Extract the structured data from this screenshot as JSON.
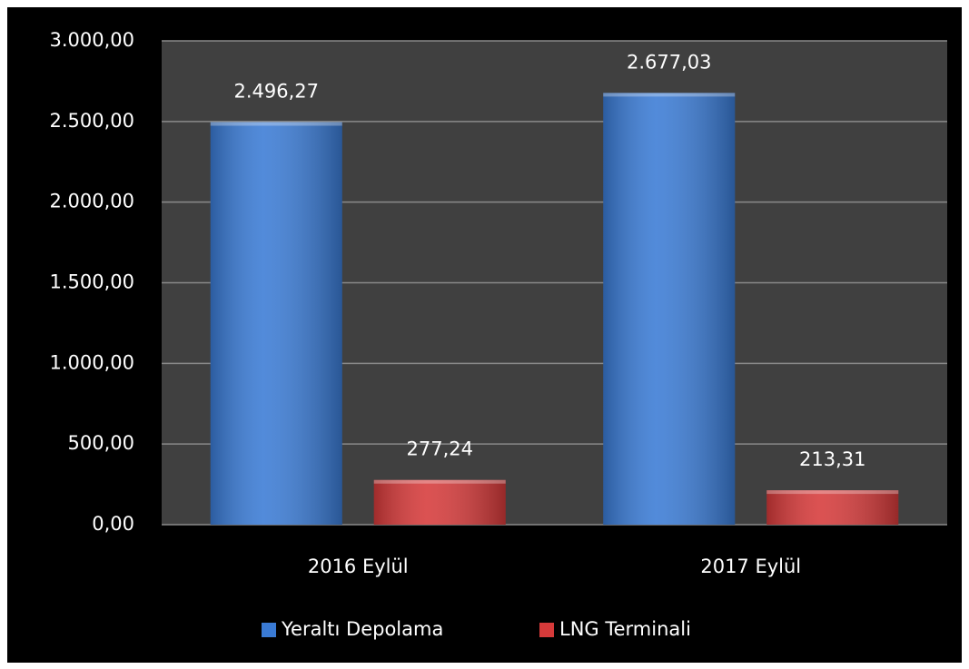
{
  "chart_data": {
    "type": "bar",
    "categories": [
      "2016 Eylül",
      "2017 Eylül"
    ],
    "series": [
      {
        "name": "Yeraltı Depolama",
        "color": "#3a7bd5",
        "values": [
          2496.27,
          2677.03
        ],
        "value_labels": [
          "2.496,27",
          "2.677,03"
        ]
      },
      {
        "name": "LNG Terminali",
        "color": "#d63a3a",
        "values": [
          277.24,
          213.31
        ],
        "value_labels": [
          "277,24",
          "213,31"
        ]
      }
    ],
    "ylim": [
      0,
      3000
    ],
    "yticks": [
      {
        "value": 0,
        "label": "0,00"
      },
      {
        "value": 500,
        "label": "500,00"
      },
      {
        "value": 1000,
        "label": "1.000,00"
      },
      {
        "value": 1500,
        "label": "1.500,00"
      },
      {
        "value": 2000,
        "label": "2.000,00"
      },
      {
        "value": 2500,
        "label": "2.500,00"
      },
      {
        "value": 3000,
        "label": "3.000,00"
      }
    ],
    "grid": true,
    "legend": "bottom"
  }
}
